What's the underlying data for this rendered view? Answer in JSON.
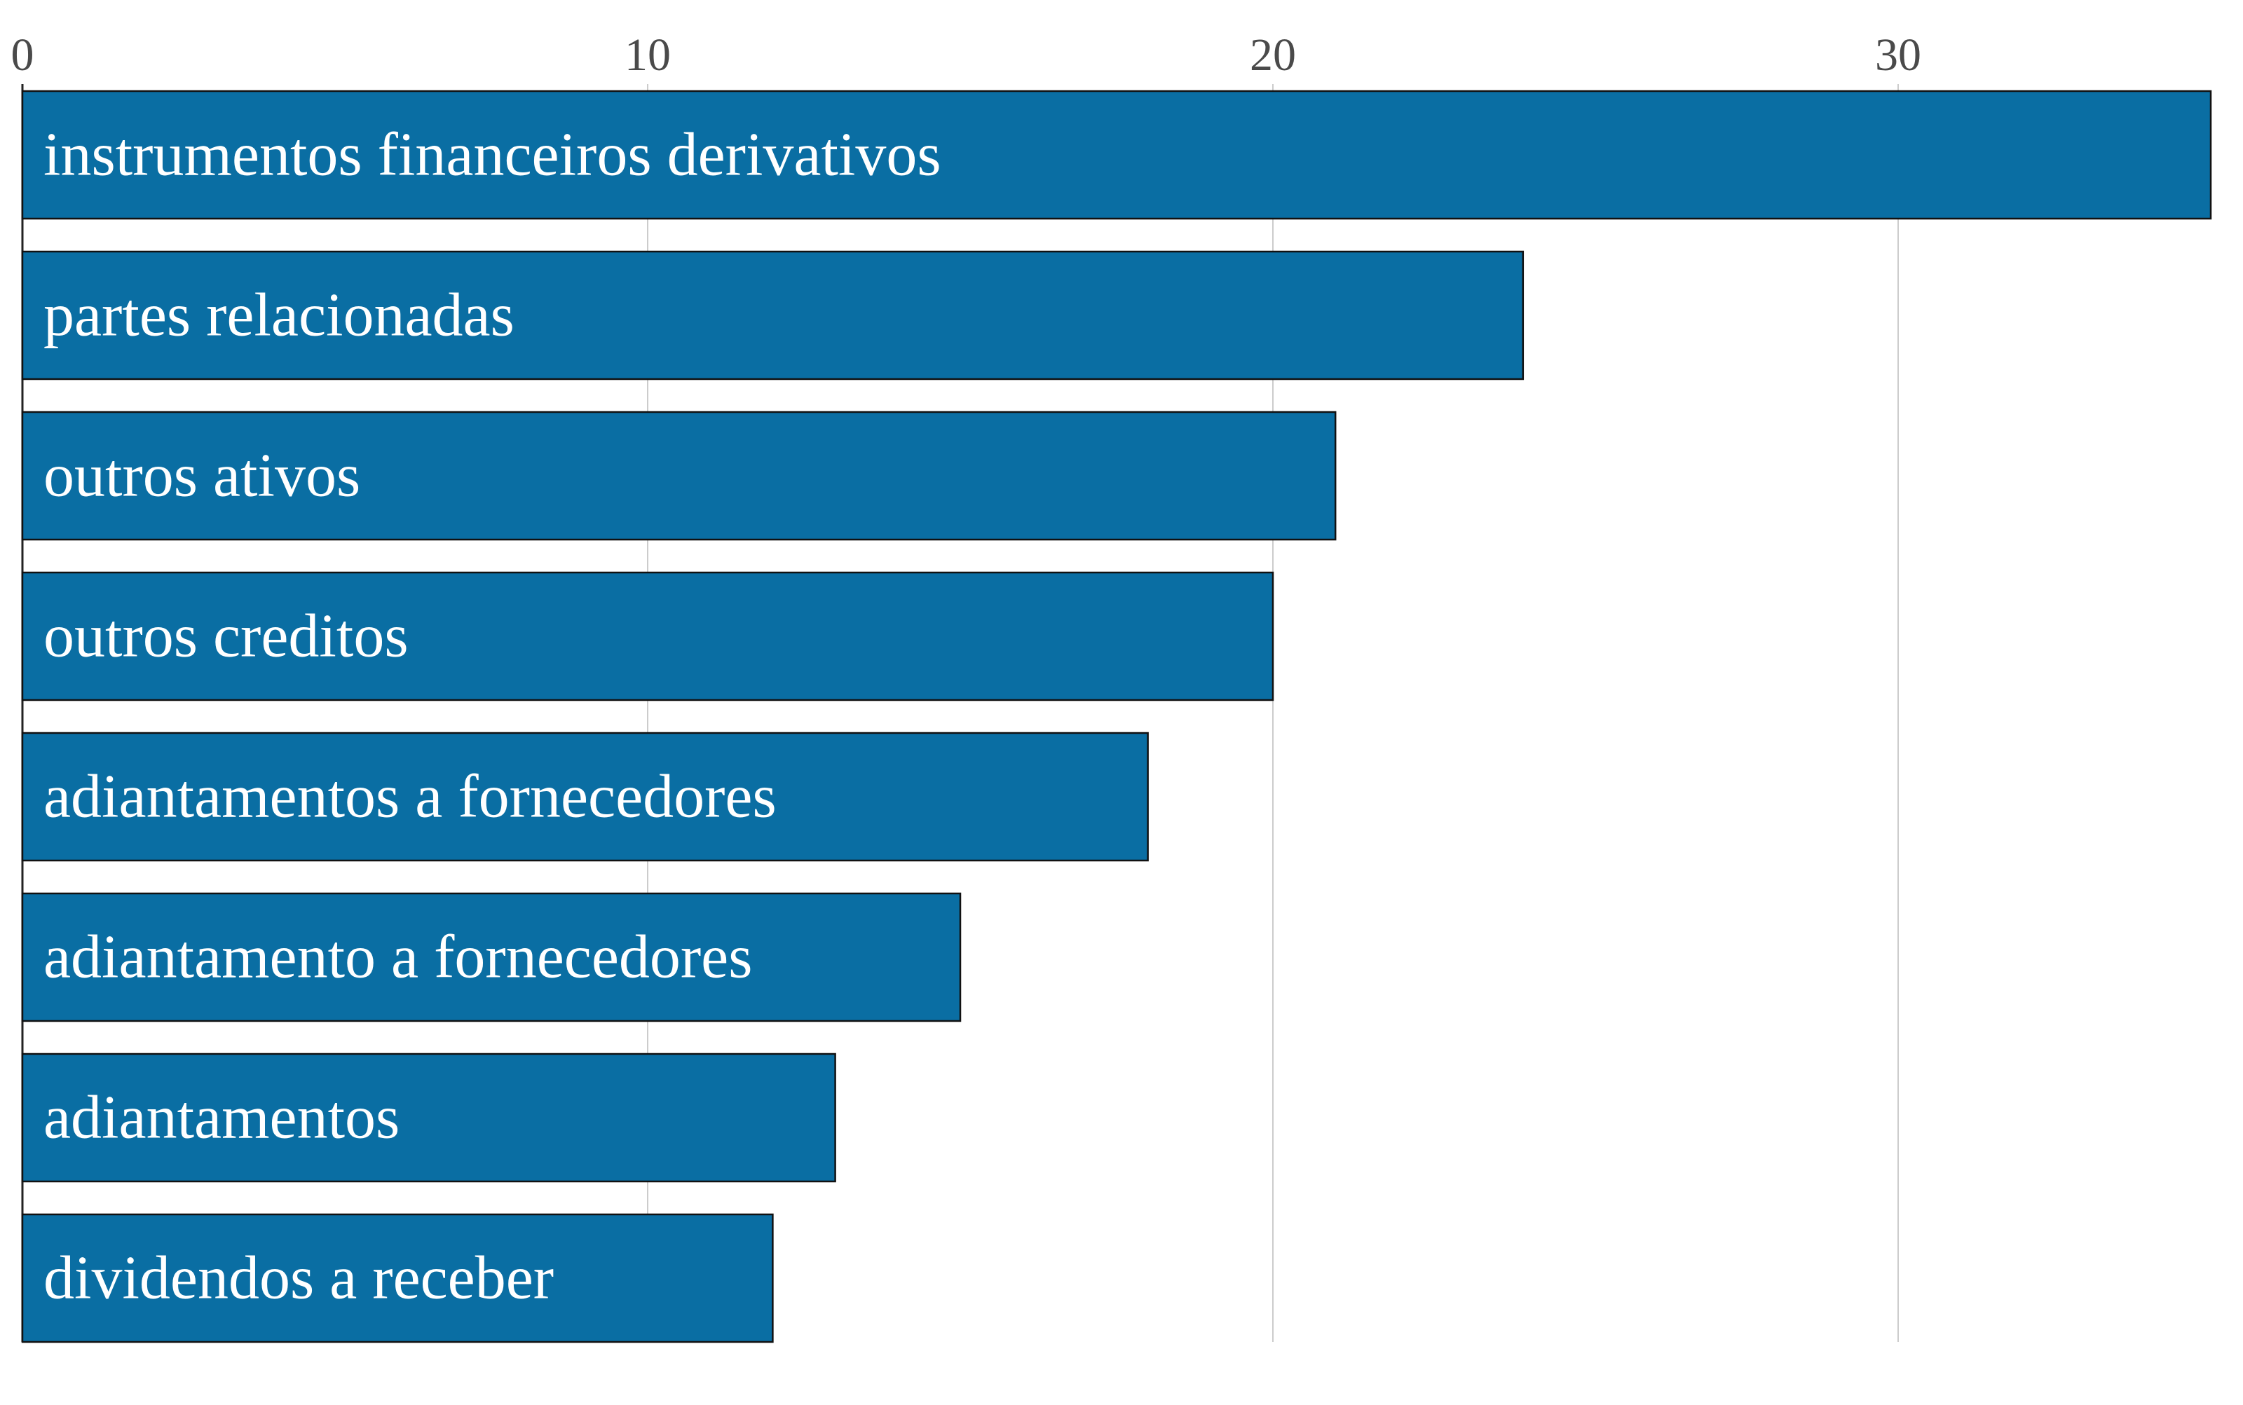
{
  "chart_data": {
    "type": "bar",
    "orientation": "horizontal",
    "title": "",
    "xlabel": "",
    "ylabel": "",
    "xlim": [
      0,
      35
    ],
    "x_ticks": [
      {
        "value": 0,
        "label": "0"
      },
      {
        "value": 10,
        "label": "10"
      },
      {
        "value": 20,
        "label": "20"
      },
      {
        "value": 30,
        "label": "30"
      }
    ],
    "tick_position": "top",
    "grid": true,
    "legend": "none",
    "bar_color": "#0a6ea3",
    "bar_edge_color": "#111111",
    "grid_color": "#cccccc",
    "categories": [
      "instrumentos financeiros derivativos",
      "partes relacionadas",
      "outros ativos",
      "outros creditos",
      "adiantamentos a fornecedores",
      "adiantamento a fornecedores",
      "adiantamentos",
      "dividendos a receber"
    ],
    "values": [
      35,
      24,
      21,
      20,
      18,
      15,
      13,
      12
    ]
  }
}
